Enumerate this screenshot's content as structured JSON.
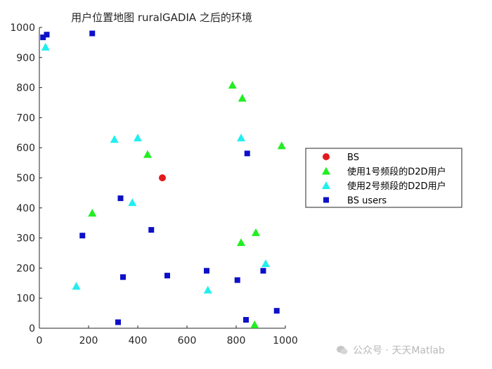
{
  "chart_data": {
    "type": "scatter",
    "title": "用户位置地图 ruralGADIA 之后的环境",
    "xlabel": "",
    "ylabel": "",
    "xlim": [
      0,
      1000
    ],
    "ylim": [
      0,
      1000
    ],
    "xticks": [
      0,
      200,
      400,
      600,
      800,
      1000
    ],
    "yticks": [
      0,
      100,
      200,
      300,
      400,
      500,
      600,
      700,
      800,
      900,
      1000
    ],
    "grid": false,
    "legend_position": "right",
    "series": [
      {
        "name": "BS",
        "marker": "circle",
        "color": "#e31a1c",
        "points": [
          [
            500,
            500
          ]
        ]
      },
      {
        "name": "使用1号频段的D2D用户",
        "marker": "triangle",
        "color": "#22ee22",
        "points": [
          [
            785,
            808
          ],
          [
            825,
            765
          ],
          [
            985,
            607
          ],
          [
            440,
            578
          ],
          [
            215,
            383
          ],
          [
            880,
            318
          ],
          [
            820,
            285
          ],
          [
            875,
            12
          ]
        ]
      },
      {
        "name": "使用2号频段的D2D用户",
        "marker": "triangle",
        "color": "#22eeee",
        "points": [
          [
            25,
            935
          ],
          [
            305,
            628
          ],
          [
            400,
            633
          ],
          [
            820,
            633
          ],
          [
            378,
            418
          ],
          [
            920,
            215
          ],
          [
            150,
            140
          ],
          [
            685,
            127
          ]
        ]
      },
      {
        "name": "BS users",
        "marker": "square",
        "color": "#0d10c8",
        "points": [
          [
            30,
            976
          ],
          [
            15,
            967
          ],
          [
            215,
            980
          ],
          [
            845,
            581
          ],
          [
            330,
            432
          ],
          [
            175,
            308
          ],
          [
            455,
            327
          ],
          [
            680,
            191
          ],
          [
            910,
            191
          ],
          [
            520,
            175
          ],
          [
            340,
            170
          ],
          [
            805,
            160
          ],
          [
            965,
            58
          ],
          [
            840,
            28
          ],
          [
            320,
            20
          ]
        ]
      }
    ]
  },
  "watermark": {
    "text": "公众号 · 天天Matlab",
    "icon": "wechat-icon",
    "color": "#b9b9b9"
  }
}
